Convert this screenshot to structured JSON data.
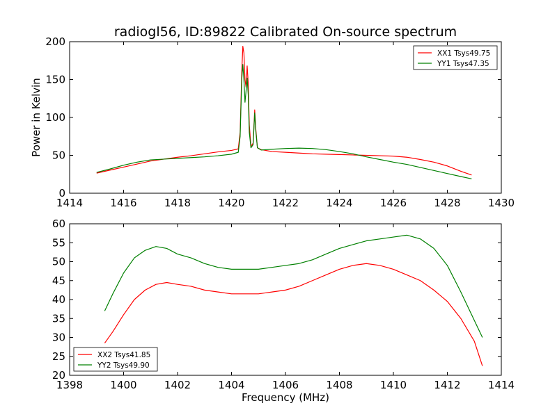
{
  "figure_title": "radiogl56, ID:89822 Calibrated On-source spectrum",
  "chart_data": [
    {
      "type": "line",
      "title": "",
      "xlabel": "",
      "ylabel": "Power in Kelvin",
      "xlim": [
        1414,
        1430
      ],
      "ylim": [
        0,
        200
      ],
      "xticks": [
        1414,
        1416,
        1418,
        1420,
        1422,
        1424,
        1426,
        1428,
        1430
      ],
      "yticks": [
        0,
        50,
        100,
        150,
        200
      ],
      "grid": false,
      "legend_position": "top-right",
      "series": [
        {
          "name": "XX1 Tsys49.75",
          "color": "#ff0000",
          "points": [
            [
              1415.0,
              26.5
            ],
            [
              1415.5,
              30.5
            ],
            [
              1416.0,
              34.5
            ],
            [
              1416.5,
              38.5
            ],
            [
              1417.0,
              42.5
            ],
            [
              1417.5,
              45.0
            ],
            [
              1418.0,
              47.5
            ],
            [
              1418.5,
              49.5
            ],
            [
              1419.0,
              52.0
            ],
            [
              1419.5,
              54.5
            ],
            [
              1420.0,
              56.5
            ],
            [
              1420.25,
              58.5
            ],
            [
              1420.32,
              80
            ],
            [
              1420.38,
              160
            ],
            [
              1420.42,
              194
            ],
            [
              1420.46,
              185
            ],
            [
              1420.5,
              150
            ],
            [
              1420.54,
              140
            ],
            [
              1420.58,
              168
            ],
            [
              1420.62,
              145
            ],
            [
              1420.66,
              90
            ],
            [
              1420.72,
              62
            ],
            [
              1420.8,
              66
            ],
            [
              1420.86,
              110
            ],
            [
              1420.9,
              85
            ],
            [
              1420.96,
              60
            ],
            [
              1421.1,
              57.5
            ],
            [
              1421.5,
              55.0
            ],
            [
              1422.0,
              54.0
            ],
            [
              1422.5,
              53.0
            ],
            [
              1423.0,
              52.0
            ],
            [
              1423.5,
              51.5
            ],
            [
              1424.0,
              51.0
            ],
            [
              1424.5,
              50.5
            ],
            [
              1425.0,
              50.0
            ],
            [
              1425.5,
              49.5
            ],
            [
              1426.0,
              49.0
            ],
            [
              1426.5,
              47.5
            ],
            [
              1427.0,
              44.5
            ],
            [
              1427.5,
              41.0
            ],
            [
              1428.0,
              36.0
            ],
            [
              1428.5,
              29.0
            ],
            [
              1428.9,
              24.0
            ]
          ]
        },
        {
          "name": "YY1 Tsys47.35",
          "color": "#008000",
          "points": [
            [
              1415.0,
              27.5
            ],
            [
              1415.5,
              32.0
            ],
            [
              1416.0,
              37.0
            ],
            [
              1416.5,
              41.0
            ],
            [
              1417.0,
              44.0
            ],
            [
              1417.5,
              45.0
            ],
            [
              1418.0,
              46.0
            ],
            [
              1418.5,
              47.0
            ],
            [
              1419.0,
              48.0
            ],
            [
              1419.5,
              49.5
            ],
            [
              1420.0,
              51.5
            ],
            [
              1420.25,
              54.0
            ],
            [
              1420.32,
              75
            ],
            [
              1420.38,
              150
            ],
            [
              1420.42,
              170
            ],
            [
              1420.46,
              150
            ],
            [
              1420.5,
              120
            ],
            [
              1420.54,
              135
            ],
            [
              1420.58,
              152
            ],
            [
              1420.62,
              130
            ],
            [
              1420.66,
              80
            ],
            [
              1420.72,
              60
            ],
            [
              1420.8,
              64
            ],
            [
              1420.86,
              106
            ],
            [
              1420.9,
              82
            ],
            [
              1420.96,
              60
            ],
            [
              1421.1,
              57.0
            ],
            [
              1421.5,
              58.0
            ],
            [
              1422.0,
              59.0
            ],
            [
              1422.5,
              59.5
            ],
            [
              1423.0,
              59.0
            ],
            [
              1423.5,
              57.5
            ],
            [
              1424.0,
              55.0
            ],
            [
              1424.5,
              52.0
            ],
            [
              1425.0,
              48.0
            ],
            [
              1425.5,
              44.5
            ],
            [
              1426.0,
              41.0
            ],
            [
              1426.5,
              38.0
            ],
            [
              1427.0,
              34.0
            ],
            [
              1427.5,
              30.0
            ],
            [
              1428.0,
              26.0
            ],
            [
              1428.5,
              22.0
            ],
            [
              1428.9,
              19.0
            ]
          ]
        }
      ]
    },
    {
      "type": "line",
      "title": "",
      "xlabel": "Frequency (MHz)",
      "ylabel": "",
      "xlim": [
        1398,
        1414
      ],
      "ylim": [
        20,
        60
      ],
      "xticks": [
        1398,
        1400,
        1402,
        1404,
        1406,
        1408,
        1410,
        1412,
        1414
      ],
      "yticks": [
        20,
        25,
        30,
        35,
        40,
        45,
        50,
        55,
        60
      ],
      "grid": false,
      "legend_position": "bottom-left",
      "series": [
        {
          "name": "XX2 Tsys41.85",
          "color": "#ff0000",
          "points": [
            [
              1399.3,
              28.5
            ],
            [
              1399.6,
              31.5
            ],
            [
              1400.0,
              36.0
            ],
            [
              1400.4,
              40.0
            ],
            [
              1400.8,
              42.5
            ],
            [
              1401.2,
              44.0
            ],
            [
              1401.6,
              44.5
            ],
            [
              1402.0,
              44.0
            ],
            [
              1402.5,
              43.5
            ],
            [
              1403.0,
              42.5
            ],
            [
              1403.5,
              42.0
            ],
            [
              1404.0,
              41.5
            ],
            [
              1404.5,
              41.5
            ],
            [
              1405.0,
              41.5
            ],
            [
              1405.5,
              42.0
            ],
            [
              1406.0,
              42.5
            ],
            [
              1406.5,
              43.5
            ],
            [
              1407.0,
              45.0
            ],
            [
              1407.5,
              46.5
            ],
            [
              1408.0,
              48.0
            ],
            [
              1408.5,
              49.0
            ],
            [
              1409.0,
              49.5
            ],
            [
              1409.5,
              49.0
            ],
            [
              1410.0,
              48.0
            ],
            [
              1410.5,
              46.5
            ],
            [
              1411.0,
              45.0
            ],
            [
              1411.5,
              42.5
            ],
            [
              1412.0,
              39.5
            ],
            [
              1412.5,
              35.0
            ],
            [
              1413.0,
              29.0
            ],
            [
              1413.3,
              22.5
            ]
          ]
        },
        {
          "name": "YY2 Tsys49.90",
          "color": "#008000",
          "points": [
            [
              1399.3,
              37.0
            ],
            [
              1399.6,
              41.5
            ],
            [
              1400.0,
              47.0
            ],
            [
              1400.4,
              51.0
            ],
            [
              1400.8,
              53.0
            ],
            [
              1401.2,
              54.0
            ],
            [
              1401.6,
              53.5
            ],
            [
              1402.0,
              52.0
            ],
            [
              1402.5,
              51.0
            ],
            [
              1403.0,
              49.5
            ],
            [
              1403.5,
              48.5
            ],
            [
              1404.0,
              48.0
            ],
            [
              1404.5,
              48.0
            ],
            [
              1405.0,
              48.0
            ],
            [
              1405.5,
              48.5
            ],
            [
              1406.0,
              49.0
            ],
            [
              1406.5,
              49.5
            ],
            [
              1407.0,
              50.5
            ],
            [
              1407.5,
              52.0
            ],
            [
              1408.0,
              53.5
            ],
            [
              1408.5,
              54.5
            ],
            [
              1409.0,
              55.5
            ],
            [
              1409.5,
              56.0
            ],
            [
              1410.0,
              56.5
            ],
            [
              1410.5,
              57.0
            ],
            [
              1411.0,
              56.0
            ],
            [
              1411.5,
              53.5
            ],
            [
              1412.0,
              49.0
            ],
            [
              1412.5,
              42.0
            ],
            [
              1413.0,
              34.5
            ],
            [
              1413.3,
              30.0
            ]
          ]
        }
      ]
    }
  ]
}
